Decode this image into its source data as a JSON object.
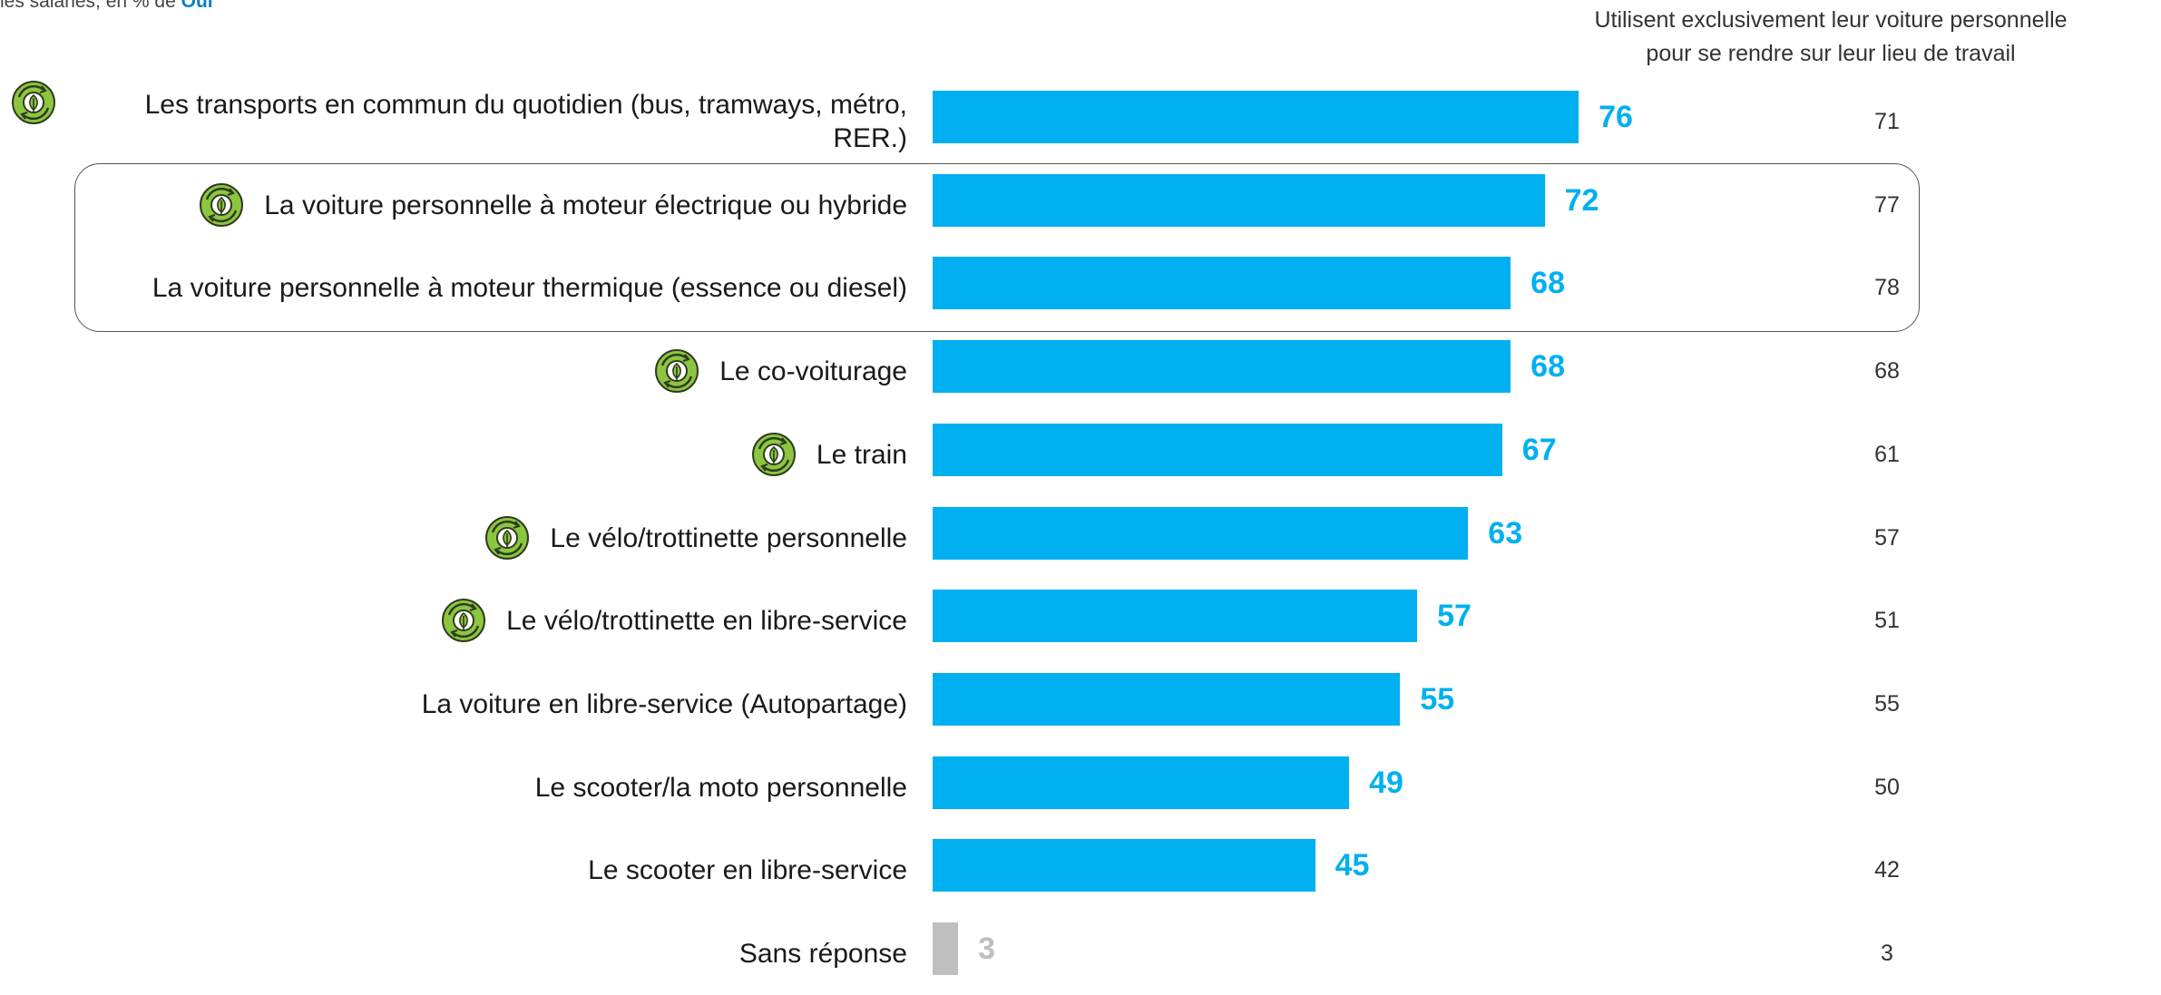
{
  "header": {
    "subtitle_prefix": "les salariés, en % de",
    "subtitle_accent": "Oui",
    "side_column_title_line1": "Utilisent exclusivement leur voiture personnelle",
    "side_column_title_line2": "pour se rendre sur leur lieu de travail"
  },
  "colors": {
    "bar": "#00b0f0",
    "bar_value": "#00b0f0",
    "muted": "#bfbfbf",
    "icon_green": "#8cc63f",
    "icon_dark": "#2e3b1f"
  },
  "chart_data": {
    "type": "bar",
    "orientation": "horizontal",
    "xlim": [
      0,
      100
    ],
    "categories": [
      "Les transports en commun du quotidien (bus, tramways, métro, RER.)",
      "La voiture personnelle à moteur électrique ou hybride",
      "La voiture personnelle à moteur thermique (essence ou diesel)",
      "Le co-voiturage",
      "Le train",
      "Le vélo/trottinette personnelle",
      "Le vélo/trottinette en libre-service",
      "La voiture en libre-service (Autopartage)",
      "Le scooter/la moto personnelle",
      "Le scooter en libre-service",
      "Sans réponse"
    ],
    "series": [
      {
        "values": [
          76,
          72,
          68,
          68,
          67,
          63,
          57,
          55,
          49,
          45,
          3
        ]
      },
      {
        "name": "Utilisent exclusivement leur voiture personnelle pour se rendre sur leur lieu de travail",
        "values": [
          71,
          77,
          78,
          68,
          61,
          57,
          51,
          55,
          50,
          42,
          3
        ]
      }
    ],
    "eco_icon": [
      true,
      true,
      false,
      true,
      true,
      true,
      true,
      false,
      false,
      false,
      false
    ],
    "muted": [
      false,
      false,
      false,
      false,
      false,
      false,
      false,
      false,
      false,
      false,
      true
    ],
    "highlight_group": [
      1,
      2
    ]
  }
}
